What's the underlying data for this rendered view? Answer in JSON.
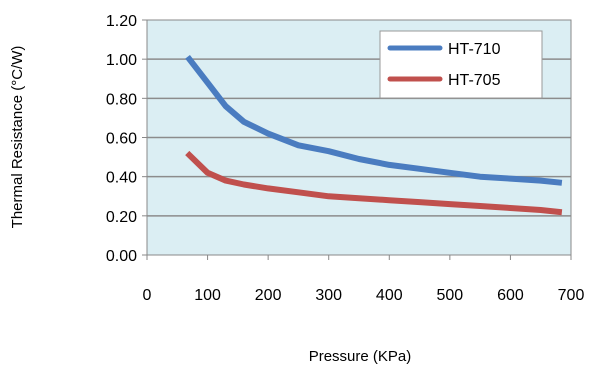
{
  "chart_data": {
    "type": "line",
    "title": "",
    "xlabel": "Pressure (KPa)",
    "ylabel": "Thermal Resistance (°C/W)",
    "xlim": [
      0,
      700
    ],
    "ylim": [
      0,
      1.2
    ],
    "xticks": [
      "0",
      "100",
      "200",
      "300",
      "400",
      "500",
      "600",
      "700"
    ],
    "yticks": [
      "0.00",
      "0.20",
      "0.40",
      "0.60",
      "0.80",
      "1.00",
      "1.20"
    ],
    "grid": "horizontal",
    "plot_background": "#dbeef3",
    "legend_position": "top-right",
    "series": [
      {
        "name": "HT-710",
        "color": "#4a7cc0",
        "x": [
          70,
          100,
          130,
          160,
          200,
          250,
          300,
          350,
          400,
          450,
          500,
          550,
          600,
          650,
          680
        ],
        "y": [
          1.0,
          0.88,
          0.76,
          0.68,
          0.62,
          0.56,
          0.53,
          0.49,
          0.46,
          0.44,
          0.42,
          0.4,
          0.39,
          0.38,
          0.37
        ]
      },
      {
        "name": "HT-705",
        "color": "#c0504d",
        "x": [
          70,
          100,
          130,
          160,
          200,
          250,
          300,
          350,
          400,
          450,
          500,
          550,
          600,
          650,
          680
        ],
        "y": [
          0.51,
          0.42,
          0.38,
          0.36,
          0.34,
          0.32,
          0.3,
          0.29,
          0.28,
          0.27,
          0.26,
          0.25,
          0.24,
          0.23,
          0.22
        ]
      }
    ]
  }
}
